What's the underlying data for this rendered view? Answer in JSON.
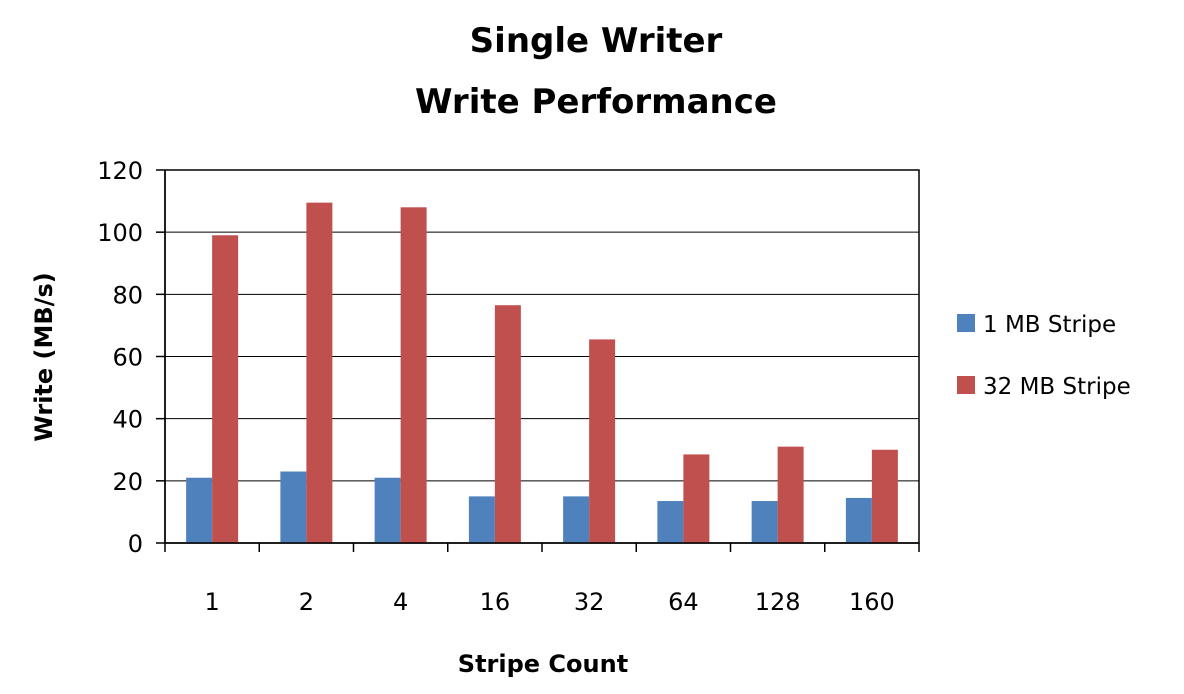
{
  "chart_data": {
    "type": "bar",
    "title": [
      "Single Writer",
      "Write Performance"
    ],
    "xlabel": "Stripe Count",
    "ylabel": "Write (MB/s)",
    "categories": [
      "1",
      "2",
      "4",
      "16",
      "32",
      "64",
      "128",
      "160"
    ],
    "ylim": [
      0,
      120
    ],
    "yticks": [
      0,
      20,
      40,
      60,
      80,
      100,
      120
    ],
    "grid": true,
    "legend_position": "right",
    "series": [
      {
        "name": "1 MB Stripe",
        "color": "#4f81bd",
        "values": [
          21,
          23,
          21,
          15,
          15,
          13.5,
          13.5,
          14.5
        ]
      },
      {
        "name": "32 MB Stripe",
        "color": "#c0504d",
        "values": [
          99,
          109.5,
          108,
          76.5,
          65.5,
          28.5,
          31,
          30
        ]
      }
    ]
  }
}
